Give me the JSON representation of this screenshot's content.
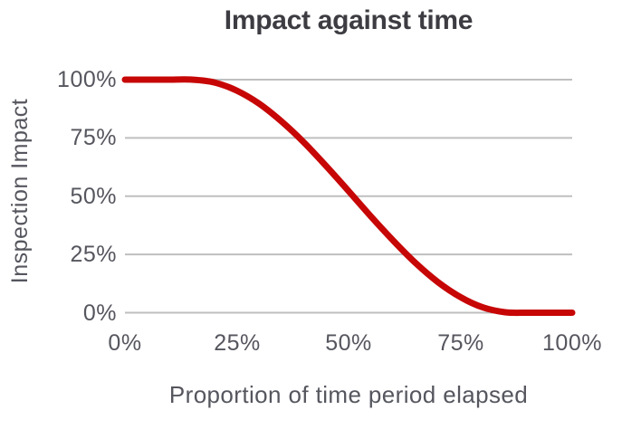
{
  "chart": {
    "colors": {
      "line": "#c70606",
      "grid": "#bfbfbf",
      "title_text": "#3c3c42",
      "axis_text": "#55565e",
      "background": "#ffffff"
    }
  },
  "chart_data": {
    "type": "line",
    "title": "Impact against time",
    "xlabel": "Proportion of time period elapsed",
    "ylabel": "Inspection Impact",
    "xlim": [
      0,
      100
    ],
    "ylim": [
      0,
      100
    ],
    "grid": "horizontal-only",
    "legend": "none",
    "x_ticks": [
      {
        "label": "0%",
        "value": 0
      },
      {
        "label": "25%",
        "value": 25
      },
      {
        "label": "50%",
        "value": 50
      },
      {
        "label": "75%",
        "value": 75
      },
      {
        "label": "100%",
        "value": 100
      }
    ],
    "y_ticks": [
      {
        "label": "100%",
        "value": 100
      },
      {
        "label": "75%",
        "value": 75
      },
      {
        "label": "50%",
        "value": 50
      },
      {
        "label": "25%",
        "value": 25
      },
      {
        "label": "0%",
        "value": 0
      }
    ],
    "series": [
      {
        "name": "Inspection Impact",
        "color": "#c70606",
        "x": [
          0,
          5,
          10,
          15,
          20,
          25,
          30,
          35,
          40,
          45,
          50,
          55,
          60,
          65,
          70,
          75,
          80,
          85,
          90,
          95,
          100
        ],
        "y": [
          100,
          100,
          100,
          100,
          98.8,
          95.3,
          89.7,
          82.1,
          73.1,
          62.9,
          52.2,
          41.3,
          30.9,
          21.3,
          13.1,
          6.7,
          2.3,
          0.2,
          0,
          0,
          0
        ]
      }
    ]
  }
}
